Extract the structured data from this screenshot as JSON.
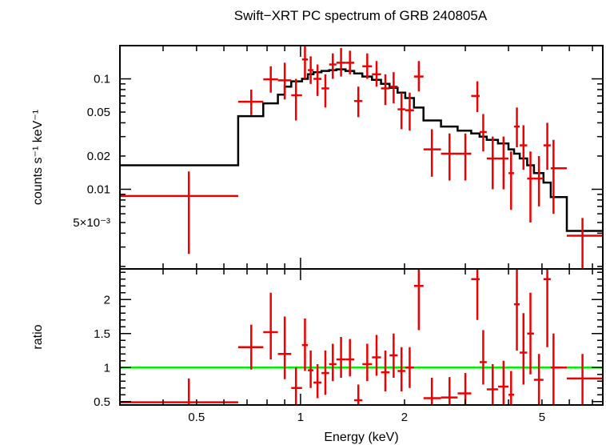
{
  "chart_data": [
    {
      "type": "line",
      "panel": "spectrum",
      "title": "Swift−XRT PC spectrum of GRB 240805A",
      "ylabel": "counts s⁻¹ keV⁻¹",
      "xscale": "log",
      "yscale": "log",
      "xlim": [
        0.3,
        7.5
      ],
      "ylim": [
        0.0019,
        0.2
      ],
      "y_tick_labels": [
        {
          "value": 0.1,
          "label": "0.1"
        },
        {
          "value": 0.05,
          "label": "0.05"
        },
        {
          "value": 0.02,
          "label": "0.02"
        },
        {
          "value": 0.01,
          "label": "0.01"
        },
        {
          "value": 0.005,
          "label": "5×10⁻³"
        }
      ],
      "series": [
        {
          "type": "errorbar",
          "color": "#ee0000",
          "points": [
            {
              "x": 0.475,
              "xlo": 0.3,
              "xhi": 0.66,
              "y": 0.0087,
              "ylo": 0.0026,
              "yhi": 0.0145
            },
            {
              "x": 0.72,
              "xlo": 0.66,
              "xhi": 0.78,
              "y": 0.062,
              "ylo": 0.047,
              "yhi": 0.08
            },
            {
              "x": 0.82,
              "xlo": 0.78,
              "xhi": 0.86,
              "y": 0.099,
              "ylo": 0.075,
              "yhi": 0.13
            },
            {
              "x": 0.9,
              "xlo": 0.86,
              "xhi": 0.94,
              "y": 0.097,
              "ylo": 0.065,
              "yhi": 0.14
            },
            {
              "x": 0.97,
              "xlo": 0.94,
              "xhi": 1.01,
              "y": 0.071,
              "ylo": 0.042,
              "yhi": 0.1
            },
            {
              "x": 1.03,
              "xlo": 1.01,
              "xhi": 1.05,
              "y": 0.15,
              "ylo": 0.1,
              "yhi": 0.2
            },
            {
              "x": 1.07,
              "xlo": 1.05,
              "xhi": 1.09,
              "y": 0.12,
              "ylo": 0.09,
              "yhi": 0.16
            },
            {
              "x": 1.12,
              "xlo": 1.09,
              "xhi": 1.15,
              "y": 0.1,
              "ylo": 0.07,
              "yhi": 0.135
            },
            {
              "x": 1.18,
              "xlo": 1.15,
              "xhi": 1.21,
              "y": 0.082,
              "ylo": 0.055,
              "yhi": 0.11
            },
            {
              "x": 1.24,
              "xlo": 1.21,
              "xhi": 1.27,
              "y": 0.135,
              "ylo": 0.1,
              "yhi": 0.17
            },
            {
              "x": 1.31,
              "xlo": 1.27,
              "xhi": 1.35,
              "y": 0.14,
              "ylo": 0.105,
              "yhi": 0.19
            },
            {
              "x": 1.39,
              "xlo": 1.35,
              "xhi": 1.43,
              "y": 0.14,
              "ylo": 0.11,
              "yhi": 0.18
            },
            {
              "x": 1.47,
              "xlo": 1.43,
              "xhi": 1.51,
              "y": 0.063,
              "ylo": 0.045,
              "yhi": 0.085
            },
            {
              "x": 1.56,
              "xlo": 1.51,
              "xhi": 1.61,
              "y": 0.13,
              "ylo": 0.1,
              "yhi": 0.17
            },
            {
              "x": 1.66,
              "xlo": 1.61,
              "xhi": 1.71,
              "y": 0.11,
              "ylo": 0.085,
              "yhi": 0.145
            },
            {
              "x": 1.76,
              "xlo": 1.71,
              "xhi": 1.81,
              "y": 0.082,
              "ylo": 0.058,
              "yhi": 0.11
            },
            {
              "x": 1.86,
              "xlo": 1.81,
              "xhi": 1.91,
              "y": 0.085,
              "ylo": 0.06,
              "yhi": 0.115
            },
            {
              "x": 1.96,
              "xlo": 1.91,
              "xhi": 2.01,
              "y": 0.053,
              "ylo": 0.035,
              "yhi": 0.075
            },
            {
              "x": 2.07,
              "xlo": 2.01,
              "xhi": 2.13,
              "y": 0.052,
              "ylo": 0.034,
              "yhi": 0.075
            },
            {
              "x": 2.2,
              "xlo": 2.13,
              "xhi": 2.27,
              "y": 0.105,
              "ylo": 0.077,
              "yhi": 0.145
            },
            {
              "x": 2.4,
              "xlo": 2.27,
              "xhi": 2.55,
              "y": 0.023,
              "ylo": 0.013,
              "yhi": 0.035
            },
            {
              "x": 2.7,
              "xlo": 2.55,
              "xhi": 2.85,
              "y": 0.021,
              "ylo": 0.012,
              "yhi": 0.032
            },
            {
              "x": 3.0,
              "xlo": 2.85,
              "xhi": 3.12,
              "y": 0.021,
              "ylo": 0.012,
              "yhi": 0.032
            },
            {
              "x": 3.25,
              "xlo": 3.12,
              "xhi": 3.3,
              "y": 0.07,
              "ylo": 0.05,
              "yhi": 0.095
            },
            {
              "x": 3.38,
              "xlo": 3.3,
              "xhi": 3.46,
              "y": 0.033,
              "ylo": 0.022,
              "yhi": 0.048
            },
            {
              "x": 3.6,
              "xlo": 3.46,
              "xhi": 3.73,
              "y": 0.019,
              "ylo": 0.01,
              "yhi": 0.03
            },
            {
              "x": 3.87,
              "xlo": 3.73,
              "xhi": 4.0,
              "y": 0.019,
              "ylo": 0.01,
              "yhi": 0.03
            },
            {
              "x": 4.07,
              "xlo": 4.0,
              "xhi": 4.15,
              "y": 0.014,
              "ylo": 0.0065,
              "yhi": 0.022
            },
            {
              "x": 4.23,
              "xlo": 4.15,
              "xhi": 4.31,
              "y": 0.037,
              "ylo": 0.024,
              "yhi": 0.055
            },
            {
              "x": 4.42,
              "xlo": 4.31,
              "xhi": 4.53,
              "y": 0.025,
              "ylo": 0.015,
              "yhi": 0.038
            },
            {
              "x": 4.63,
              "xlo": 4.53,
              "xhi": 4.74,
              "y": 0.0125,
              "ylo": 0.005,
              "yhi": 0.022
            },
            {
              "x": 4.9,
              "xlo": 4.74,
              "xhi": 5.05,
              "y": 0.0125,
              "ylo": 0.007,
              "yhi": 0.02
            },
            {
              "x": 5.18,
              "xlo": 5.05,
              "xhi": 5.3,
              "y": 0.025,
              "ylo": 0.015,
              "yhi": 0.04
            },
            {
              "x": 5.4,
              "xlo": 5.3,
              "xhi": 5.9,
              "y": 0.0155,
              "ylo": 0.006,
              "yhi": 0.028
            },
            {
              "x": 6.55,
              "xlo": 5.9,
              "xhi": 7.5,
              "y": 0.0038,
              "ylo": 0.0019,
              "yhi": 0.0055
            }
          ]
        },
        {
          "type": "step",
          "color": "#000000",
          "steps": [
            {
              "x0": 0.3,
              "x1": 0.66,
              "y": 0.0165
            },
            {
              "x0": 0.66,
              "x1": 0.78,
              "y": 0.046
            },
            {
              "x0": 0.78,
              "x1": 0.86,
              "y": 0.06
            },
            {
              "x0": 0.86,
              "x1": 0.9,
              "y": 0.072
            },
            {
              "x0": 0.9,
              "x1": 0.94,
              "y": 0.085
            },
            {
              "x0": 0.94,
              "x1": 1.01,
              "y": 0.095
            },
            {
              "x0": 1.01,
              "x1": 1.05,
              "y": 0.1
            },
            {
              "x0": 1.05,
              "x1": 1.09,
              "y": 0.11
            },
            {
              "x0": 1.09,
              "x1": 1.15,
              "y": 0.115
            },
            {
              "x0": 1.15,
              "x1": 1.21,
              "y": 0.118
            },
            {
              "x0": 1.21,
              "x1": 1.27,
              "y": 0.12
            },
            {
              "x0": 1.27,
              "x1": 1.35,
              "y": 0.122
            },
            {
              "x0": 1.35,
              "x1": 1.43,
              "y": 0.118
            },
            {
              "x0": 1.43,
              "x1": 1.51,
              "y": 0.112
            },
            {
              "x0": 1.51,
              "x1": 1.61,
              "y": 0.105
            },
            {
              "x0": 1.61,
              "x1": 1.71,
              "y": 0.098
            },
            {
              "x0": 1.71,
              "x1": 1.81,
              "y": 0.09
            },
            {
              "x0": 1.81,
              "x1": 1.91,
              "y": 0.083
            },
            {
              "x0": 1.91,
              "x1": 2.01,
              "y": 0.075
            },
            {
              "x0": 2.01,
              "x1": 2.13,
              "y": 0.067
            },
            {
              "x0": 2.13,
              "x1": 2.27,
              "y": 0.055
            },
            {
              "x0": 2.27,
              "x1": 2.55,
              "y": 0.042
            },
            {
              "x0": 2.55,
              "x1": 2.85,
              "y": 0.037
            },
            {
              "x0": 2.85,
              "x1": 3.12,
              "y": 0.034
            },
            {
              "x0": 3.12,
              "x1": 3.3,
              "y": 0.032
            },
            {
              "x0": 3.3,
              "x1": 3.46,
              "y": 0.03
            },
            {
              "x0": 3.46,
              "x1": 3.73,
              "y": 0.028
            },
            {
              "x0": 3.73,
              "x1": 4.0,
              "y": 0.026
            },
            {
              "x0": 4.0,
              "x1": 4.15,
              "y": 0.023
            },
            {
              "x0": 4.15,
              "x1": 4.31,
              "y": 0.021
            },
            {
              "x0": 4.31,
              "x1": 4.53,
              "y": 0.019
            },
            {
              "x0": 4.53,
              "x1": 4.74,
              "y": 0.0165
            },
            {
              "x0": 4.74,
              "x1": 5.05,
              "y": 0.014
            },
            {
              "x0": 5.05,
              "x1": 5.3,
              "y": 0.0115
            },
            {
              "x0": 5.3,
              "x1": 5.9,
              "y": 0.0085
            },
            {
              "x0": 5.9,
              "x1": 7.5,
              "y": 0.0042
            }
          ]
        }
      ]
    },
    {
      "type": "scatter",
      "panel": "ratio",
      "xlabel": "Energy (keV)",
      "ylabel": "ratio",
      "xscale": "log",
      "yscale": "linear",
      "xlim": [
        0.3,
        7.5
      ],
      "ylim": [
        0.45,
        2.45
      ],
      "x_tick_labels": [
        {
          "value": 0.5,
          "label": "0.5"
        },
        {
          "value": 1,
          "label": "1"
        },
        {
          "value": 2,
          "label": "2"
        },
        {
          "value": 5,
          "label": "5"
        }
      ],
      "y_tick_labels": [
        {
          "value": 0.5,
          "label": "0.5"
        },
        {
          "value": 1,
          "label": "1"
        },
        {
          "value": 1.5,
          "label": "1.5"
        },
        {
          "value": 2,
          "label": "2"
        }
      ],
      "reference_line": {
        "y": 1,
        "color": "#00ee00"
      },
      "series": [
        {
          "type": "errorbar",
          "color": "#ee0000",
          "points": [
            {
              "x": 0.475,
              "xlo": 0.3,
              "xhi": 0.66,
              "y": 0.49,
              "ylo": 0.45,
              "yhi": 0.84
            },
            {
              "x": 0.72,
              "xlo": 0.66,
              "xhi": 0.78,
              "y": 1.3,
              "ylo": 0.97,
              "yhi": 1.63
            },
            {
              "x": 0.82,
              "xlo": 0.78,
              "xhi": 0.86,
              "y": 1.52,
              "ylo": 1.12,
              "yhi": 2.1
            },
            {
              "x": 0.9,
              "xlo": 0.86,
              "xhi": 0.94,
              "y": 1.2,
              "ylo": 0.83,
              "yhi": 1.75
            },
            {
              "x": 0.97,
              "xlo": 0.94,
              "xhi": 1.01,
              "y": 0.7,
              "ylo": 0.45,
              "yhi": 1.0
            },
            {
              "x": 1.03,
              "xlo": 1.01,
              "xhi": 1.05,
              "y": 1.33,
              "ylo": 0.95,
              "yhi": 1.72
            },
            {
              "x": 1.07,
              "xlo": 1.05,
              "xhi": 1.09,
              "y": 0.96,
              "ylo": 0.7,
              "yhi": 1.25
            },
            {
              "x": 1.12,
              "xlo": 1.09,
              "xhi": 1.15,
              "y": 0.78,
              "ylo": 0.55,
              "yhi": 1.05
            },
            {
              "x": 1.18,
              "xlo": 1.15,
              "xhi": 1.21,
              "y": 0.92,
              "ylo": 0.6,
              "yhi": 1.25
            },
            {
              "x": 1.24,
              "xlo": 1.21,
              "xhi": 1.27,
              "y": 1.05,
              "ylo": 0.8,
              "yhi": 1.35
            },
            {
              "x": 1.31,
              "xlo": 1.27,
              "xhi": 1.35,
              "y": 1.12,
              "ylo": 0.85,
              "yhi": 1.45
            },
            {
              "x": 1.39,
              "xlo": 1.35,
              "xhi": 1.43,
              "y": 1.12,
              "ylo": 0.87,
              "yhi": 1.42
            },
            {
              "x": 1.47,
              "xlo": 1.43,
              "xhi": 1.51,
              "y": 0.52,
              "ylo": 0.45,
              "yhi": 0.75
            },
            {
              "x": 1.56,
              "xlo": 1.51,
              "xhi": 1.61,
              "y": 1.05,
              "ylo": 0.8,
              "yhi": 1.35
            },
            {
              "x": 1.66,
              "xlo": 1.61,
              "xhi": 1.71,
              "y": 1.15,
              "ylo": 0.88,
              "yhi": 1.48
            },
            {
              "x": 1.76,
              "xlo": 1.71,
              "xhi": 1.81,
              "y": 0.93,
              "ylo": 0.65,
              "yhi": 1.25
            },
            {
              "x": 1.86,
              "xlo": 1.81,
              "xhi": 1.91,
              "y": 1.18,
              "ylo": 0.85,
              "yhi": 1.5
            },
            {
              "x": 1.96,
              "xlo": 1.91,
              "xhi": 2.01,
              "y": 0.95,
              "ylo": 0.65,
              "yhi": 1.3
            },
            {
              "x": 2.07,
              "xlo": 2.01,
              "xhi": 2.13,
              "y": 1.0,
              "ylo": 0.7,
              "yhi": 1.3
            },
            {
              "x": 2.2,
              "xlo": 2.13,
              "xhi": 2.27,
              "y": 2.2,
              "ylo": 1.55,
              "yhi": 2.6
            },
            {
              "x": 2.4,
              "xlo": 2.27,
              "xhi": 2.55,
              "y": 0.55,
              "ylo": 0.45,
              "yhi": 0.85
            },
            {
              "x": 2.7,
              "xlo": 2.55,
              "xhi": 2.85,
              "y": 0.56,
              "ylo": 0.45,
              "yhi": 0.86
            },
            {
              "x": 3.0,
              "xlo": 2.85,
              "xhi": 3.12,
              "y": 0.62,
              "ylo": 0.45,
              "yhi": 0.92
            },
            {
              "x": 3.25,
              "xlo": 3.12,
              "xhi": 3.3,
              "y": 2.3,
              "ylo": 1.7,
              "yhi": 2.6
            },
            {
              "x": 3.38,
              "xlo": 3.3,
              "xhi": 3.46,
              "y": 1.08,
              "ylo": 0.75,
              "yhi": 1.55
            },
            {
              "x": 3.6,
              "xlo": 3.46,
              "xhi": 3.73,
              "y": 0.68,
              "ylo": 0.45,
              "yhi": 1.05
            },
            {
              "x": 3.87,
              "xlo": 3.73,
              "xhi": 4.0,
              "y": 0.72,
              "ylo": 0.45,
              "yhi": 1.1
            },
            {
              "x": 4.07,
              "xlo": 4.0,
              "xhi": 4.15,
              "y": 0.6,
              "ylo": 0.45,
              "yhi": 0.95
            },
            {
              "x": 4.23,
              "xlo": 4.15,
              "xhi": 4.31,
              "y": 1.93,
              "ylo": 1.25,
              "yhi": 2.6
            },
            {
              "x": 4.42,
              "xlo": 4.31,
              "xhi": 4.53,
              "y": 1.22,
              "ylo": 0.75,
              "yhi": 1.8
            },
            {
              "x": 4.63,
              "xlo": 4.53,
              "xhi": 4.74,
              "y": 1.5,
              "ylo": 0.9,
              "yhi": 2.1
            },
            {
              "x": 4.9,
              "xlo": 4.74,
              "xhi": 5.05,
              "y": 0.82,
              "ylo": 0.45,
              "yhi": 1.2
            },
            {
              "x": 5.18,
              "xlo": 5.05,
              "xhi": 5.3,
              "y": 2.3,
              "ylo": 1.3,
              "yhi": 2.6
            },
            {
              "x": 5.4,
              "xlo": 5.3,
              "xhi": 5.9,
              "y": 1.0,
              "ylo": 0.45,
              "yhi": 1.5
            },
            {
              "x": 6.55,
              "xlo": 5.9,
              "xhi": 7.5,
              "y": 0.84,
              "ylo": 0.45,
              "yhi": 1.2
            }
          ]
        }
      ]
    }
  ]
}
